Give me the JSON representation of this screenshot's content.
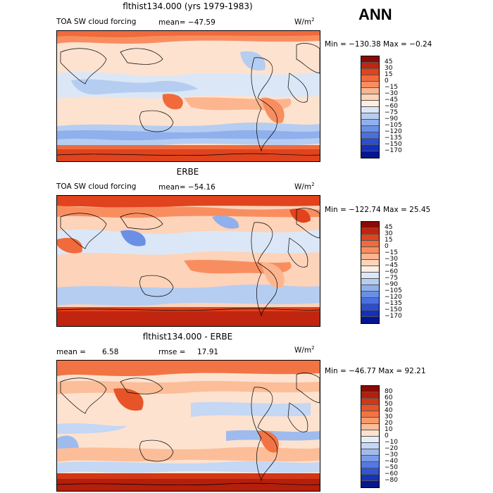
{
  "header": {
    "season": "ANN"
  },
  "panels": [
    {
      "title": "flthist134.000 (yrs 1979-1983)",
      "left_label": "TOA SW cloud forcing",
      "mean_text": "mean= −47.59",
      "units": "W/m",
      "units_sup": "2",
      "minmax": "Min = −130.38 Max =   −0.24",
      "colorbar_levels": [
        "45",
        "30",
        "15",
        "0",
        "−15",
        "−30",
        "−45",
        "−60",
        "−75",
        "−90",
        "−105",
        "−120",
        "−135",
        "−150",
        "−170"
      ],
      "colorbar_colors": [
        "#8a0a06",
        "#c1250f",
        "#e0431d",
        "#f06a3c",
        "#f88e60",
        "#fcb58f",
        "#fdd3b9",
        "#fdeee2",
        "#dbe7f6",
        "#b5cdf1",
        "#8fb0ec",
        "#6a90e6",
        "#4a70dd",
        "#2a4dd1",
        "#1230bd",
        "#04168f"
      ]
    },
    {
      "title": "ERBE",
      "left_label": "TOA SW cloud forcing",
      "mean_text": "mean= −54.16",
      "units": "W/m",
      "units_sup": "2",
      "minmax": "Min = −122.74 Max =   25.45",
      "colorbar_levels": [
        "45",
        "30",
        "15",
        "0",
        "−15",
        "−30",
        "−45",
        "−60",
        "−75",
        "−90",
        "−105",
        "−120",
        "−135",
        "−150",
        "−170"
      ],
      "colorbar_colors": [
        "#8a0a06",
        "#c1250f",
        "#e0431d",
        "#f06a3c",
        "#f88e60",
        "#fcb58f",
        "#fdd3b9",
        "#fdeee2",
        "#dbe7f6",
        "#b5cdf1",
        "#8fb0ec",
        "#6a90e6",
        "#4a70dd",
        "#2a4dd1",
        "#1230bd",
        "#04168f"
      ]
    },
    {
      "title": "flthist134.000 - ERBE",
      "mean_label": "mean =",
      "mean_value": "6.58",
      "rmse_label": "rmse =",
      "rmse_value": "17.91",
      "units": "W/m",
      "units_sup": "2",
      "minmax": "Min = −46.77 Max =   92.21",
      "colorbar_levels": [
        "80",
        "60",
        "50",
        "40",
        "30",
        "20",
        "10",
        "0",
        "−10",
        "−20",
        "−30",
        "−40",
        "−50",
        "−60",
        "−80"
      ],
      "colorbar_colors": [
        "#8a0a06",
        "#b41f0c",
        "#d23716",
        "#e65428",
        "#f27444",
        "#f99a6c",
        "#fcbd99",
        "#fde2cf",
        "#e6eefa",
        "#c4d7f4",
        "#9fbbee",
        "#7b9be8",
        "#5678df",
        "#3254d2",
        "#1632b8",
        "#06178d"
      ]
    }
  ]
}
